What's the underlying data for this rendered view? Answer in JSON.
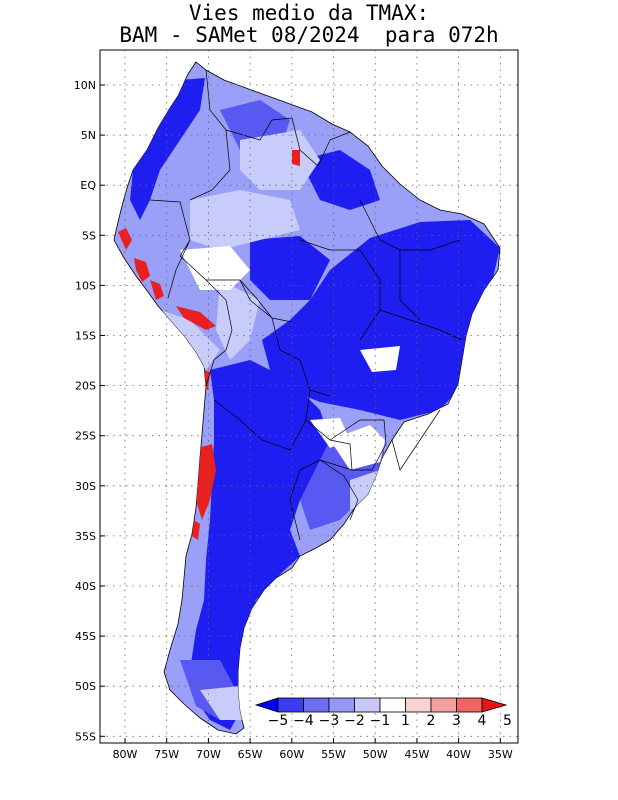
{
  "title": {
    "line1": "Vies medio da TMAX:",
    "line2": "BAM - SAMet 08/2024  para 072h"
  },
  "axes": {
    "lat_labels": [
      "10N",
      "5N",
      "EQ",
      "5S",
      "10S",
      "15S",
      "20S",
      "25S",
      "30S",
      "35S",
      "40S",
      "45S",
      "50S",
      "55S"
    ],
    "lon_labels": [
      "80W",
      "75W",
      "70W",
      "65W",
      "60W",
      "55W",
      "50W",
      "45W",
      "40W",
      "35W"
    ]
  },
  "colorbar": {
    "labels": [
      "-5",
      "-4",
      "-3",
      "-2",
      "-1",
      "1",
      "2",
      "3",
      "4",
      "5"
    ],
    "colors": [
      "#0000f5",
      "#3c3cf5",
      "#6e6ef5",
      "#9696f7",
      "#c8c8f9",
      "#ffffff",
      "#fad2d2",
      "#f5a0a0",
      "#f06464",
      "#e81414"
    ]
  },
  "map_colors": {
    "land_base": "#9aa0f7",
    "strong_cold": "#1e1ef0",
    "mid_cold": "#5858f2",
    "light_cold": "#c8ccfa",
    "neutral": "#ffffff",
    "warm": "#e82020"
  }
}
